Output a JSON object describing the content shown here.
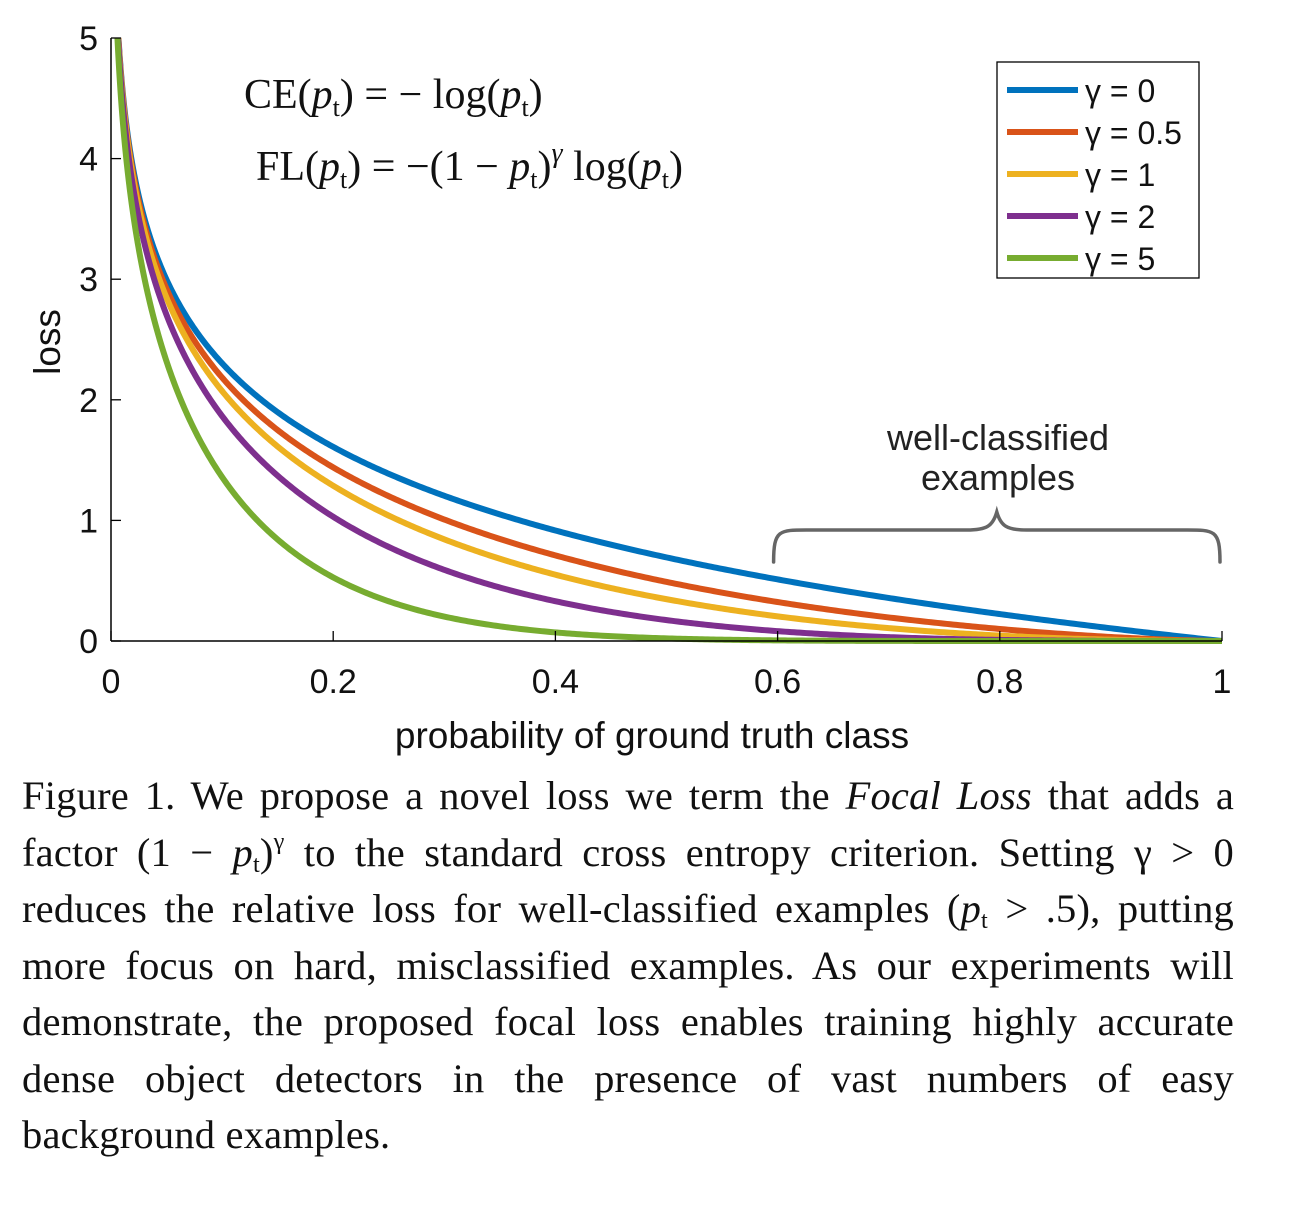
{
  "chart_data": {
    "type": "line",
    "xlabel": "probability of ground truth class",
    "ylabel": "loss",
    "xlim": [
      0,
      1
    ],
    "ylim": [
      0,
      5
    ],
    "xticks": [
      "0",
      "0.2",
      "0.4",
      "0.6",
      "0.8",
      "1"
    ],
    "xtick_values": [
      0,
      0.2,
      0.4,
      0.6,
      0.8,
      1
    ],
    "yticks": [
      "0",
      "1",
      "2",
      "3",
      "4",
      "5"
    ],
    "ytick_values": [
      0,
      1,
      2,
      3,
      4,
      5
    ],
    "series": [
      {
        "name": "γ = 0",
        "gamma": 0,
        "color": "#0072BD"
      },
      {
        "name": "γ = 0.5",
        "gamma": 0.5,
        "color": "#D95319"
      },
      {
        "name": "γ = 1",
        "gamma": 1,
        "color": "#EDB120"
      },
      {
        "name": "γ = 2",
        "gamma": 2,
        "color": "#7E2F8E"
      },
      {
        "name": "γ = 5",
        "gamma": 5,
        "color": "#77AC30"
      }
    ],
    "formula_ce": {
      "lhs": "CE",
      "arg": "p",
      "sub": "t",
      "rhs": "− log("
    },
    "formula_fl": {
      "lhs": "FL",
      "sup": "γ",
      "rhs1": "−(1 − ",
      "rhs2": " log("
    },
    "annotation": {
      "line1": "well-classified",
      "line2": "examples",
      "x_start": 0.6,
      "x_end": 1.0
    },
    "legend_position": "top-right",
    "grid": false
  },
  "caption": {
    "p1": "Figure 1. We propose a novel loss we term the ",
    "italic": "Focal Loss",
    "p2": " that adds a factor (1 − ",
    "p_var": "p",
    "p_sub": "t",
    "p3": ")",
    "gamma_sup": "γ",
    "p4": " to the standard cross entropy criterion. Setting γ > 0 reduces the relative loss for well-classified examples (",
    "p5": " > .5), putting more focus on hard, misclassified examples. As our experiments will demonstrate, the proposed focal loss enables training highly accurate dense object detectors in the presence of vast numbers of easy background examples."
  }
}
